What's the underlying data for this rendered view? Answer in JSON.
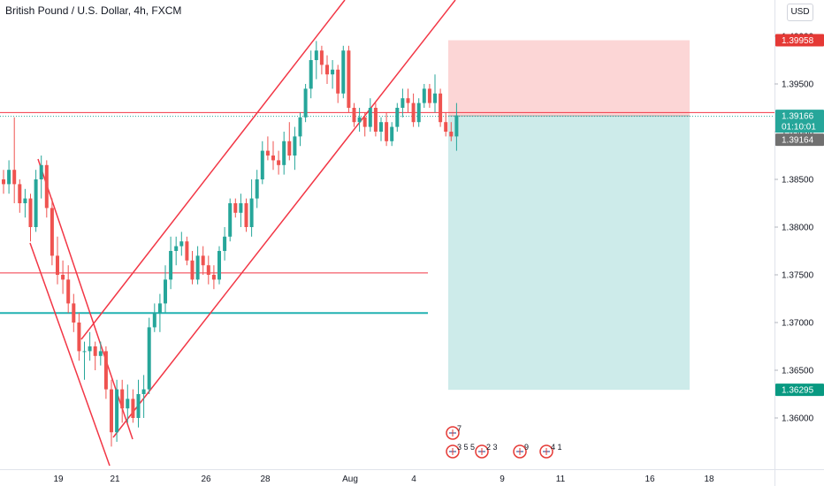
{
  "header": {
    "title": "British Pound / U.S. Dollar, 4h, FXCM",
    "currency": "USD"
  },
  "colors": {
    "up": "#26a69a",
    "down": "#ef5350",
    "trend": "#f23645",
    "stop_zone": "#fcd6d6",
    "target_zone": "#cdebea",
    "support": "#22b2b2",
    "resistance": "#f23645",
    "price_tag": "#e53935",
    "target_tag": "#089981",
    "current_tag": "#707070"
  },
  "chart_data": {
    "type": "candlestick",
    "symbol": "GBPUSD",
    "timeframe": "4h",
    "source": "FXCM",
    "y_axis": {
      "ticks": [
        "1.40000",
        "1.39500",
        "1.39000",
        "1.38500",
        "1.38000",
        "1.37500",
        "1.37000",
        "1.36500",
        "1.36000"
      ],
      "range": [
        1.3555,
        1.405
      ]
    },
    "x_axis": {
      "ticks": [
        "19",
        "21",
        "26",
        "28",
        "Aug",
        "4",
        "9",
        "11",
        "16",
        "18"
      ]
    },
    "price_labels": {
      "stop_loss": "1.39958",
      "last_price": "1.39166",
      "countdown": "01:10:01",
      "bid": "1.39164",
      "take_profit": "1.36295"
    },
    "position": {
      "type": "short",
      "entry": 1.39166,
      "stop_loss": 1.39958,
      "take_profit": 1.36295
    },
    "horizontal_lines": [
      {
        "name": "resistance",
        "price": 1.392
      },
      {
        "name": "mid-level",
        "price": 1.3752
      },
      {
        "name": "support",
        "price": 1.371
      }
    ],
    "events": [
      {
        "label": "7"
      },
      {
        "label": "3 5 5"
      },
      {
        "label": "2 3"
      },
      {
        "label": "9"
      },
      {
        "label": "4 1"
      }
    ],
    "candles": [
      [
        1.385,
        1.386,
        1.3835,
        1.3845
      ],
      [
        1.3845,
        1.387,
        1.3835,
        1.386
      ],
      [
        1.386,
        1.3915,
        1.3825,
        1.3845
      ],
      [
        1.3845,
        1.385,
        1.3815,
        1.3825
      ],
      [
        1.3825,
        1.384,
        1.381,
        1.383
      ],
      [
        1.383,
        1.3835,
        1.3785,
        1.38
      ],
      [
        1.38,
        1.386,
        1.3795,
        1.385
      ],
      [
        1.385,
        1.3875,
        1.383,
        1.3865
      ],
      [
        1.3865,
        1.387,
        1.381,
        1.382
      ],
      [
        1.382,
        1.383,
        1.376,
        1.377
      ],
      [
        1.377,
        1.379,
        1.374,
        1.375
      ],
      [
        1.375,
        1.3765,
        1.373,
        1.3745
      ],
      [
        1.3745,
        1.376,
        1.371,
        1.372
      ],
      [
        1.372,
        1.373,
        1.369,
        1.37
      ],
      [
        1.37,
        1.371,
        1.366,
        1.367
      ],
      [
        1.367,
        1.368,
        1.364,
        1.367
      ],
      [
        1.367,
        1.369,
        1.366,
        1.3675
      ],
      [
        1.3675,
        1.368,
        1.365,
        1.3665
      ],
      [
        1.3665,
        1.368,
        1.3655,
        1.367
      ],
      [
        1.367,
        1.3675,
        1.362,
        1.363
      ],
      [
        1.363,
        1.364,
        1.357,
        1.3585
      ],
      [
        1.3585,
        1.364,
        1.3575,
        1.363
      ],
      [
        1.363,
        1.364,
        1.3595,
        1.361
      ],
      [
        1.361,
        1.3635,
        1.3595,
        1.362
      ],
      [
        1.362,
        1.363,
        1.3595,
        1.36
      ],
      [
        1.36,
        1.364,
        1.359,
        1.3625
      ],
      [
        1.3625,
        1.3645,
        1.36,
        1.363
      ],
      [
        1.363,
        1.3705,
        1.3625,
        1.3695
      ],
      [
        1.3695,
        1.372,
        1.369,
        1.371
      ],
      [
        1.371,
        1.373,
        1.369,
        1.372
      ],
      [
        1.372,
        1.376,
        1.371,
        1.3745
      ],
      [
        1.3745,
        1.379,
        1.3735,
        1.3775
      ],
      [
        1.3775,
        1.379,
        1.376,
        1.378
      ],
      [
        1.378,
        1.3795,
        1.377,
        1.3785
      ],
      [
        1.3785,
        1.379,
        1.376,
        1.3765
      ],
      [
        1.3765,
        1.3775,
        1.374,
        1.3745
      ],
      [
        1.3745,
        1.378,
        1.374,
        1.377
      ],
      [
        1.377,
        1.378,
        1.375,
        1.376
      ],
      [
        1.376,
        1.377,
        1.374,
        1.375
      ],
      [
        1.375,
        1.376,
        1.3735,
        1.3745
      ],
      [
        1.3745,
        1.378,
        1.374,
        1.3775
      ],
      [
        1.3775,
        1.38,
        1.3765,
        1.379
      ],
      [
        1.379,
        1.383,
        1.3785,
        1.3825
      ],
      [
        1.3825,
        1.383,
        1.381,
        1.3815
      ],
      [
        1.3815,
        1.3835,
        1.38,
        1.3825
      ],
      [
        1.3825,
        1.383,
        1.3795,
        1.38
      ],
      [
        1.38,
        1.385,
        1.379,
        1.383
      ],
      [
        1.383,
        1.386,
        1.382,
        1.385
      ],
      [
        1.385,
        1.389,
        1.3845,
        1.388
      ],
      [
        1.388,
        1.3895,
        1.387,
        1.3875
      ],
      [
        1.3875,
        1.389,
        1.386,
        1.387
      ],
      [
        1.387,
        1.388,
        1.3855,
        1.3865
      ],
      [
        1.3865,
        1.39,
        1.3855,
        1.389
      ],
      [
        1.389,
        1.391,
        1.387,
        1.3875
      ],
      [
        1.3875,
        1.3905,
        1.386,
        1.3895
      ],
      [
        1.3895,
        1.392,
        1.3885,
        1.3915
      ],
      [
        1.3915,
        1.395,
        1.391,
        1.3945
      ],
      [
        1.3945,
        1.3985,
        1.3935,
        1.3975
      ],
      [
        1.3975,
        1.3995,
        1.3955,
        1.3985
      ],
      [
        1.3985,
        1.399,
        1.396,
        1.397
      ],
      [
        1.397,
        1.398,
        1.395,
        1.396
      ],
      [
        1.396,
        1.3975,
        1.3945,
        1.3965
      ],
      [
        1.3965,
        1.397,
        1.393,
        1.394
      ],
      [
        1.394,
        1.399,
        1.3935,
        1.3985
      ],
      [
        1.3985,
        1.399,
        1.392,
        1.3925
      ],
      [
        1.3925,
        1.393,
        1.3905,
        1.391
      ],
      [
        1.391,
        1.3925,
        1.39,
        1.3915
      ],
      [
        1.3915,
        1.392,
        1.3895,
        1.3905
      ],
      [
        1.3905,
        1.3935,
        1.39,
        1.3925
      ],
      [
        1.3925,
        1.393,
        1.3895,
        1.39
      ],
      [
        1.39,
        1.3915,
        1.389,
        1.391
      ],
      [
        1.391,
        1.392,
        1.3885,
        1.389
      ],
      [
        1.389,
        1.391,
        1.3885,
        1.3905
      ],
      [
        1.3905,
        1.393,
        1.39,
        1.3925
      ],
      [
        1.3925,
        1.3945,
        1.3915,
        1.3935
      ],
      [
        1.3935,
        1.3945,
        1.392,
        1.393
      ],
      [
        1.393,
        1.394,
        1.3905,
        1.391
      ],
      [
        1.391,
        1.3935,
        1.3905,
        1.393
      ],
      [
        1.393,
        1.395,
        1.3925,
        1.3945
      ],
      [
        1.3945,
        1.395,
        1.3925,
        1.393
      ],
      [
        1.393,
        1.396,
        1.392,
        1.394
      ],
      [
        1.394,
        1.3945,
        1.3905,
        1.391
      ],
      [
        1.391,
        1.392,
        1.3895,
        1.39
      ],
      [
        1.39,
        1.391,
        1.389,
        1.3895
      ],
      [
        1.3895,
        1.393,
        1.388,
        1.3917
      ]
    ]
  }
}
